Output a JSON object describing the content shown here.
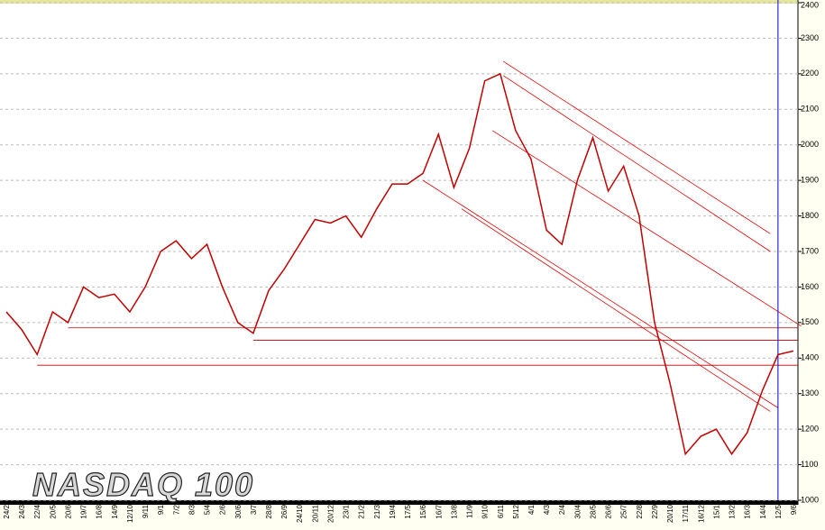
{
  "chart_data": {
    "type": "line",
    "title": "NASDAQ 100",
    "categories": [
      "24/2",
      "24/3",
      "22/4",
      "20/5",
      "20/6",
      "19/7",
      "16/8",
      "14/9",
      "12/10",
      "9/11",
      "9/1",
      "7/2",
      "8/3",
      "5/4",
      "2/6",
      "30/6",
      "3/7",
      "28/8",
      "26/9",
      "24/10",
      "20/11",
      "20/12",
      "23/1",
      "21/2",
      "21/3",
      "19/4",
      "17/5",
      "15/6",
      "16/7",
      "13/8",
      "11/9",
      "9/10",
      "6/11",
      "5/12",
      "4/1",
      "4/3",
      "2/4",
      "30/4",
      "28/5",
      "26/6",
      "25/7",
      "22/8",
      "22/9",
      "20/10",
      "17/11",
      "16/12",
      "15/1",
      "13/2",
      "16/3",
      "14/4",
      "12/5",
      "9/6"
    ],
    "values": [
      1530,
      1480,
      1410,
      1530,
      1500,
      1600,
      1570,
      1580,
      1530,
      1600,
      1700,
      1730,
      1680,
      1720,
      1600,
      1500,
      1470,
      1590,
      1650,
      1720,
      1790,
      1780,
      1800,
      1740,
      1820,
      1890,
      1890,
      1920,
      2030,
      1880,
      1990,
      2180,
      2200,
      2040,
      1960,
      1760,
      1720,
      1900,
      2020,
      1870,
      1940,
      1800,
      1500,
      1330,
      1130,
      1180,
      1200,
      1130,
      1190,
      1310,
      1410,
      1420
    ],
    "color": "#c00000",
    "ylim": [
      1000,
      2400
    ],
    "yticks": [
      1000,
      1100,
      1200,
      1300,
      1400,
      1500,
      1600,
      1700,
      1800,
      1900,
      2000,
      2100,
      2200,
      2300,
      2400
    ],
    "grid": true,
    "hlines": [
      {
        "value": 1485,
        "from": 4
      },
      {
        "value": 1450,
        "from": 16
      },
      {
        "value": 1380,
        "from": 2
      }
    ],
    "trendlines": [
      {
        "x": [
          32.2,
          49.5
        ],
        "y": [
          2235,
          1750
        ]
      },
      {
        "x": [
          32.2,
          49.5
        ],
        "y": [
          2195,
          1700
        ]
      },
      {
        "x": [
          31.5,
          51.5
        ],
        "y": [
          2040,
          1490
        ]
      },
      {
        "x": [
          27,
          50
        ],
        "y": [
          1900,
          1260
        ]
      },
      {
        "x": [
          29.5,
          49.5
        ],
        "y": [
          1820,
          1250
        ]
      }
    ],
    "vline": 50
  }
}
